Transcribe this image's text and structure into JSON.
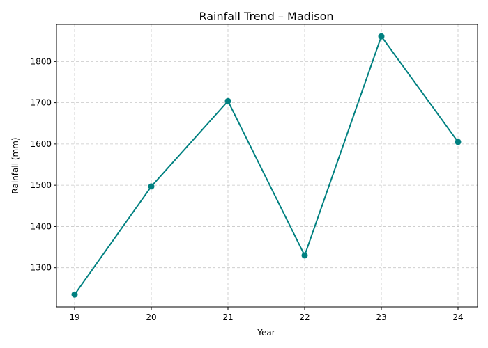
{
  "chart_data": {
    "type": "line",
    "title": "Rainfall Trend – Madison",
    "xlabel": "Year",
    "ylabel": "Rainfall (mm)",
    "categories": [
      "19",
      "20",
      "21",
      "22",
      "23",
      "24"
    ],
    "series": [
      {
        "values": [
          1235,
          1497,
          1704,
          1330,
          1861,
          1605
        ]
      }
    ],
    "ylim": [
      1205,
      1890
    ],
    "yticks": [
      1300,
      1400,
      1500,
      1600,
      1700,
      1800
    ],
    "grid": true,
    "colors": {
      "line": "#008080",
      "marker": "#008080"
    }
  }
}
